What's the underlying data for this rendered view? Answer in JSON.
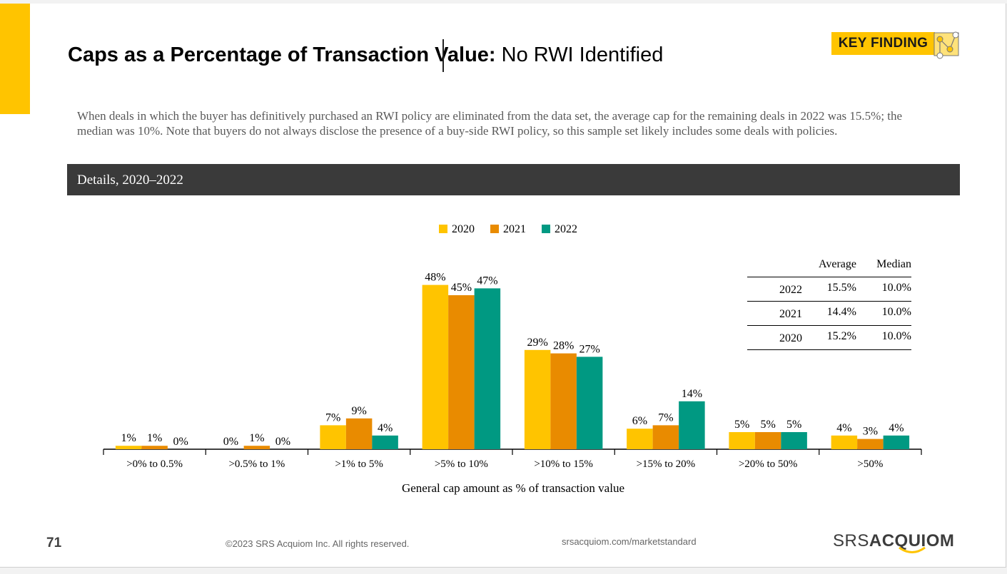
{
  "title": {
    "bold": "Caps as a Percentage of Transaction Value:",
    "normal": "No RWI Identified"
  },
  "key_finding": "KEY FINDING",
  "intro": "When deals in which the buyer has definitively purchased an RWI policy are eliminated from the data set, the average cap for the remaining deals in 2022 was 15.5%; the median was 10%. Note that buyers do not always disclose the presence of a buy-side RWI policy, so this sample set likely includes some deals with policies.",
  "details_label": "Details, 2020–2022",
  "colors": {
    "accent": "#ffc400",
    "s2020": "#ffc400",
    "s2021": "#e98b00",
    "s2022": "#009982"
  },
  "legend": [
    "2020",
    "2021",
    "2022"
  ],
  "summary_table": {
    "headers": [
      "Average",
      "Median"
    ],
    "rows": [
      {
        "year": "2022",
        "average": "15.5%",
        "median": "10.0%"
      },
      {
        "year": "2021",
        "average": "14.4%",
        "median": "10.0%"
      },
      {
        "year": "2020",
        "average": "15.2%",
        "median": "10.0%"
      }
    ]
  },
  "chart_data": {
    "type": "bar",
    "title": "",
    "xlabel": "General cap amount as % of transaction value",
    "ylabel": "",
    "ylim": [
      0,
      50
    ],
    "categories": [
      ">0% to 0.5%",
      ">0.5% to 1%",
      ">1% to 5%",
      ">5% to 10%",
      ">10% to 15%",
      ">15% to 20%",
      ">20% to 50%",
      ">50%"
    ],
    "series": [
      {
        "name": "2020",
        "values": [
          1,
          0,
          7,
          48,
          29,
          6,
          5,
          4
        ],
        "labels": [
          "1%",
          "0%",
          "7%",
          "48%",
          "29%",
          "6%",
          "5%",
          "4%"
        ]
      },
      {
        "name": "2021",
        "values": [
          1,
          1,
          9,
          45,
          28,
          7,
          5,
          3
        ],
        "labels": [
          "1%",
          "1%",
          "9%",
          "45%",
          "28%",
          "7%",
          "5%",
          "3%"
        ]
      },
      {
        "name": "2022",
        "values": [
          0,
          0,
          4,
          47,
          27,
          14,
          5,
          4
        ],
        "labels": [
          "0%",
          "0%",
          "4%",
          "47%",
          "27%",
          "14%",
          "5%",
          "4%"
        ]
      }
    ],
    "legend_position": "top",
    "grid": false
  },
  "footer": {
    "page": "71",
    "copyright": "©2023 SRS Acquiom Inc. All rights reserved.",
    "url": "srsacquiom.com/marketstandard"
  },
  "logo": {
    "part1": "SRS",
    "part2": "ACQUIOM"
  }
}
